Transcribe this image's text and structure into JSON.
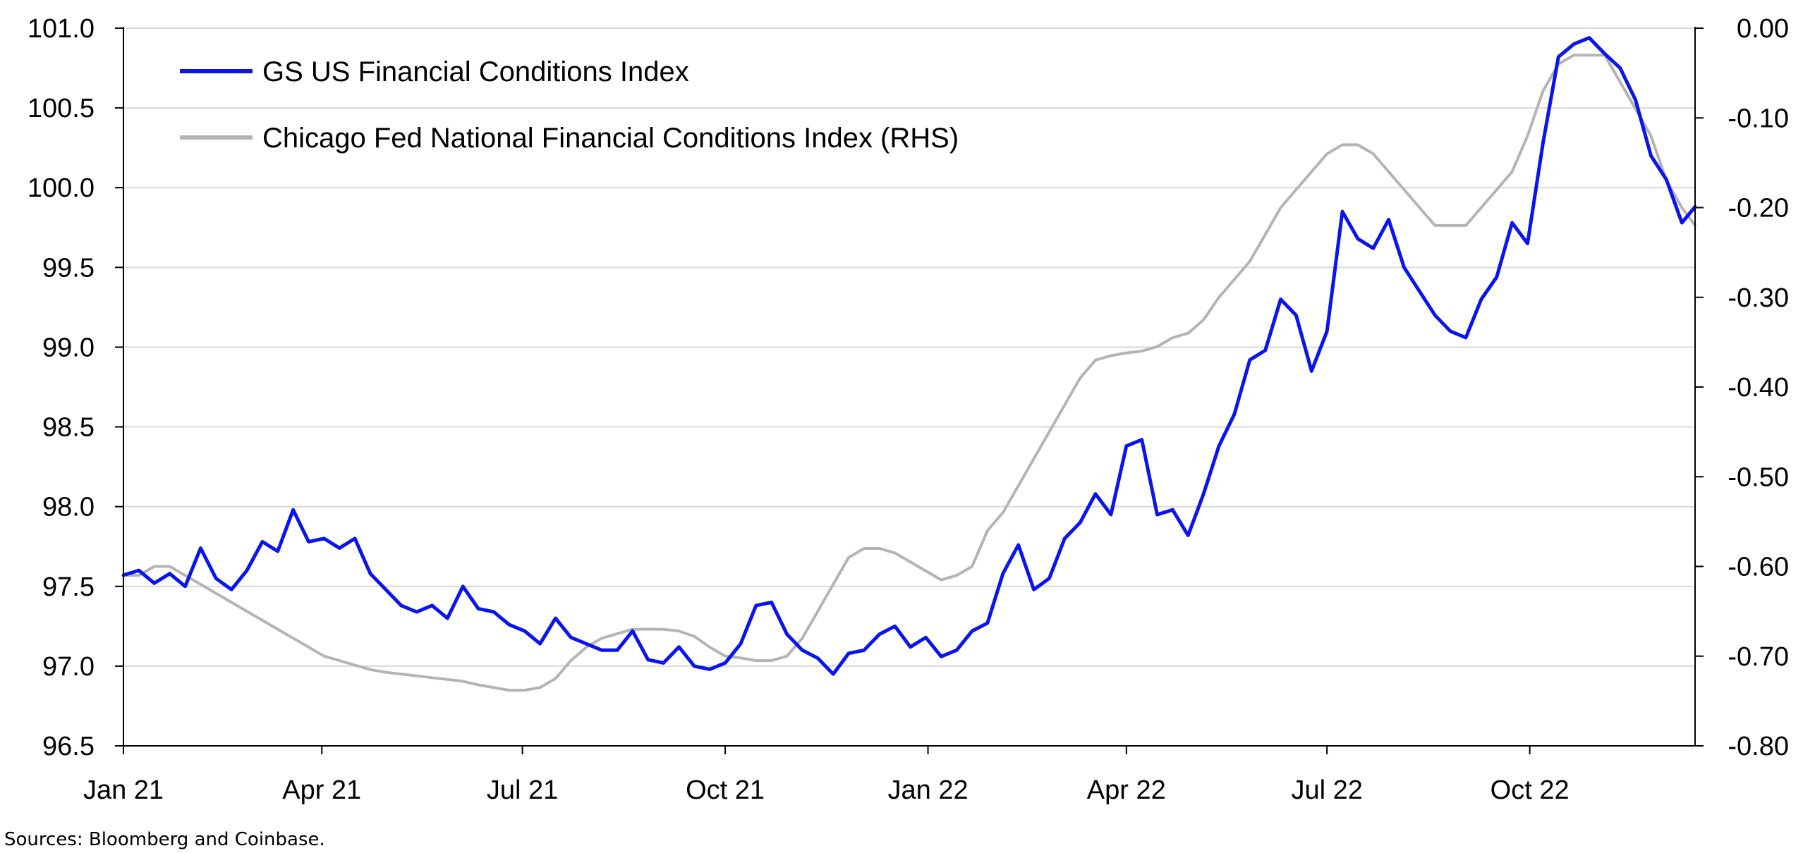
{
  "chart_data": {
    "type": "line",
    "title": "",
    "xlabel": "",
    "ylabel": "",
    "x_tick_labels": [
      "Jan 21",
      "Apr 21",
      "Jul 21",
      "Oct 21",
      "Jan 22",
      "Apr 22",
      "Jul 22",
      "Oct 22"
    ],
    "x_tick_dates": [
      "2021-01-01",
      "2021-04-01",
      "2021-07-01",
      "2021-10-01",
      "2022-01-01",
      "2022-04-01",
      "2022-07-01",
      "2022-10-01"
    ],
    "xlim": [
      "2021-01-01",
      "2022-12-15"
    ],
    "y_left": {
      "lim": [
        96.5,
        101.0
      ],
      "ticks": [
        "96.5",
        "97.0",
        "97.5",
        "98.0",
        "98.5",
        "99.0",
        "99.5",
        "100.0",
        "100.5",
        "101.0"
      ]
    },
    "y_right": {
      "lim": [
        -0.8,
        0.0
      ],
      "ticks": [
        "-0.80",
        "-0.70",
        "-0.60",
        "-0.50",
        "-0.40",
        "-0.30",
        "-0.20",
        "-0.10",
        "0.00"
      ]
    },
    "grid": "horizontal",
    "legend_position": "top-left",
    "series": [
      {
        "name": "GS US Financial Conditions Index",
        "axis": "left",
        "color": "#0a14ef",
        "x": [
          "2021-01-01",
          "2021-01-08",
          "2021-01-15",
          "2021-01-22",
          "2021-01-29",
          "2021-02-05",
          "2021-02-12",
          "2021-02-19",
          "2021-02-26",
          "2021-03-05",
          "2021-03-12",
          "2021-03-19",
          "2021-03-26",
          "2021-04-02",
          "2021-04-09",
          "2021-04-16",
          "2021-04-23",
          "2021-04-30",
          "2021-05-07",
          "2021-05-14",
          "2021-05-21",
          "2021-05-28",
          "2021-06-04",
          "2021-06-11",
          "2021-06-18",
          "2021-06-25",
          "2021-07-02",
          "2021-07-09",
          "2021-07-16",
          "2021-07-23",
          "2021-07-30",
          "2021-08-06",
          "2021-08-13",
          "2021-08-20",
          "2021-08-27",
          "2021-09-03",
          "2021-09-10",
          "2021-09-17",
          "2021-09-24",
          "2021-10-01",
          "2021-10-08",
          "2021-10-15",
          "2021-10-22",
          "2021-10-29",
          "2021-11-05",
          "2021-11-12",
          "2021-11-19",
          "2021-11-26",
          "2021-12-03",
          "2021-12-10",
          "2021-12-17",
          "2021-12-24",
          "2021-12-31",
          "2022-01-07",
          "2022-01-14",
          "2022-01-21",
          "2022-01-28",
          "2022-02-04",
          "2022-02-11",
          "2022-02-18",
          "2022-02-25",
          "2022-03-04",
          "2022-03-11",
          "2022-03-18",
          "2022-03-25",
          "2022-04-01",
          "2022-04-08",
          "2022-04-15",
          "2022-04-22",
          "2022-04-29",
          "2022-05-06",
          "2022-05-13",
          "2022-05-20",
          "2022-05-27",
          "2022-06-03",
          "2022-06-10",
          "2022-06-17",
          "2022-06-24",
          "2022-07-01",
          "2022-07-08",
          "2022-07-15",
          "2022-07-22",
          "2022-07-29",
          "2022-08-05",
          "2022-08-12",
          "2022-08-19",
          "2022-08-26",
          "2022-09-02",
          "2022-09-09",
          "2022-09-16",
          "2022-09-23",
          "2022-09-30",
          "2022-10-07",
          "2022-10-14",
          "2022-10-21",
          "2022-10-28",
          "2022-11-04",
          "2022-11-11",
          "2022-11-18",
          "2022-11-25",
          "2022-12-02",
          "2022-12-09",
          "2022-12-15"
        ],
        "values": [
          97.57,
          97.6,
          97.52,
          97.58,
          97.5,
          97.74,
          97.55,
          97.48,
          97.6,
          97.78,
          97.72,
          97.98,
          97.78,
          97.8,
          97.74,
          97.8,
          97.58,
          97.48,
          97.38,
          97.34,
          97.38,
          97.3,
          97.5,
          97.36,
          97.34,
          97.26,
          97.22,
          97.14,
          97.3,
          97.18,
          97.14,
          97.1,
          97.1,
          97.22,
          97.04,
          97.02,
          97.12,
          97.0,
          96.98,
          97.02,
          97.14,
          97.38,
          97.4,
          97.2,
          97.1,
          97.05,
          96.95,
          97.08,
          97.1,
          97.2,
          97.25,
          97.12,
          97.18,
          97.06,
          97.1,
          97.22,
          97.27,
          97.58,
          97.76,
          97.48,
          97.55,
          97.8,
          97.9,
          98.08,
          97.95,
          98.38,
          98.42,
          97.95,
          97.98,
          97.82,
          98.08,
          98.38,
          98.58,
          98.92,
          98.98,
          99.3,
          99.2,
          98.85,
          99.1,
          99.85,
          99.68,
          99.62,
          99.8,
          99.5,
          99.35,
          99.2,
          99.1,
          99.06,
          99.3,
          99.44,
          99.78,
          99.65,
          100.28,
          100.82,
          100.9,
          100.94,
          100.84,
          100.75,
          100.55,
          100.2,
          100.05,
          99.78,
          99.88
        ]
      },
      {
        "name": "Chicago Fed National Financial Conditions Index (RHS)",
        "axis": "right",
        "color": "#b4b4b4",
        "x": [
          "2021-01-01",
          "2021-01-08",
          "2021-01-15",
          "2021-01-22",
          "2021-01-29",
          "2021-02-05",
          "2021-02-12",
          "2021-02-19",
          "2021-02-26",
          "2021-03-05",
          "2021-03-12",
          "2021-03-19",
          "2021-03-26",
          "2021-04-02",
          "2021-04-09",
          "2021-04-16",
          "2021-04-23",
          "2021-04-30",
          "2021-05-07",
          "2021-05-14",
          "2021-05-21",
          "2021-05-28",
          "2021-06-04",
          "2021-06-11",
          "2021-06-18",
          "2021-06-25",
          "2021-07-02",
          "2021-07-09",
          "2021-07-16",
          "2021-07-23",
          "2021-07-30",
          "2021-08-06",
          "2021-08-13",
          "2021-08-20",
          "2021-08-27",
          "2021-09-03",
          "2021-09-10",
          "2021-09-17",
          "2021-09-24",
          "2021-10-01",
          "2021-10-08",
          "2021-10-15",
          "2021-10-22",
          "2021-10-29",
          "2021-11-05",
          "2021-11-12",
          "2021-11-19",
          "2021-11-26",
          "2021-12-03",
          "2021-12-10",
          "2021-12-17",
          "2021-12-24",
          "2021-12-31",
          "2022-01-07",
          "2022-01-14",
          "2022-01-21",
          "2022-01-28",
          "2022-02-04",
          "2022-02-11",
          "2022-02-18",
          "2022-02-25",
          "2022-03-04",
          "2022-03-11",
          "2022-03-18",
          "2022-03-25",
          "2022-04-01",
          "2022-04-08",
          "2022-04-15",
          "2022-04-22",
          "2022-04-29",
          "2022-05-06",
          "2022-05-13",
          "2022-05-20",
          "2022-05-27",
          "2022-06-03",
          "2022-06-10",
          "2022-06-17",
          "2022-06-24",
          "2022-07-01",
          "2022-07-08",
          "2022-07-15",
          "2022-07-22",
          "2022-07-29",
          "2022-08-05",
          "2022-08-12",
          "2022-08-19",
          "2022-08-26",
          "2022-09-02",
          "2022-09-09",
          "2022-09-16",
          "2022-09-23",
          "2022-09-30",
          "2022-10-07",
          "2022-10-14",
          "2022-10-21",
          "2022-10-28",
          "2022-11-04",
          "2022-11-11",
          "2022-11-18",
          "2022-11-25",
          "2022-12-02",
          "2022-12-09",
          "2022-12-15"
        ],
        "values": [
          -0.61,
          -0.61,
          -0.6,
          -0.6,
          -0.61,
          -0.62,
          -0.63,
          -0.64,
          -0.65,
          -0.66,
          -0.67,
          -0.68,
          -0.69,
          -0.7,
          -0.705,
          -0.71,
          -0.715,
          -0.718,
          -0.72,
          -0.722,
          -0.724,
          -0.726,
          -0.728,
          -0.732,
          -0.735,
          -0.738,
          -0.738,
          -0.735,
          -0.725,
          -0.705,
          -0.69,
          -0.68,
          -0.675,
          -0.67,
          -0.67,
          -0.67,
          -0.672,
          -0.678,
          -0.69,
          -0.7,
          -0.702,
          -0.705,
          -0.705,
          -0.7,
          -0.68,
          -0.65,
          -0.62,
          -0.59,
          -0.58,
          -0.58,
          -0.585,
          -0.595,
          -0.605,
          -0.615,
          -0.61,
          -0.6,
          -0.56,
          -0.54,
          -0.51,
          -0.48,
          -0.45,
          -0.42,
          -0.39,
          -0.37,
          -0.365,
          -0.362,
          -0.36,
          -0.355,
          -0.345,
          -0.34,
          -0.325,
          -0.3,
          -0.28,
          -0.26,
          -0.23,
          -0.2,
          -0.18,
          -0.16,
          -0.14,
          -0.13,
          -0.13,
          -0.14,
          -0.16,
          -0.18,
          -0.2,
          -0.22,
          -0.22,
          -0.22,
          -0.2,
          -0.18,
          -0.16,
          -0.12,
          -0.07,
          -0.04,
          -0.03,
          -0.03,
          -0.03,
          -0.06,
          -0.09,
          -0.12,
          -0.17,
          -0.2,
          -0.22
        ]
      }
    ]
  },
  "footer": {
    "sources": "Sources: Bloomberg and Coinbase."
  }
}
